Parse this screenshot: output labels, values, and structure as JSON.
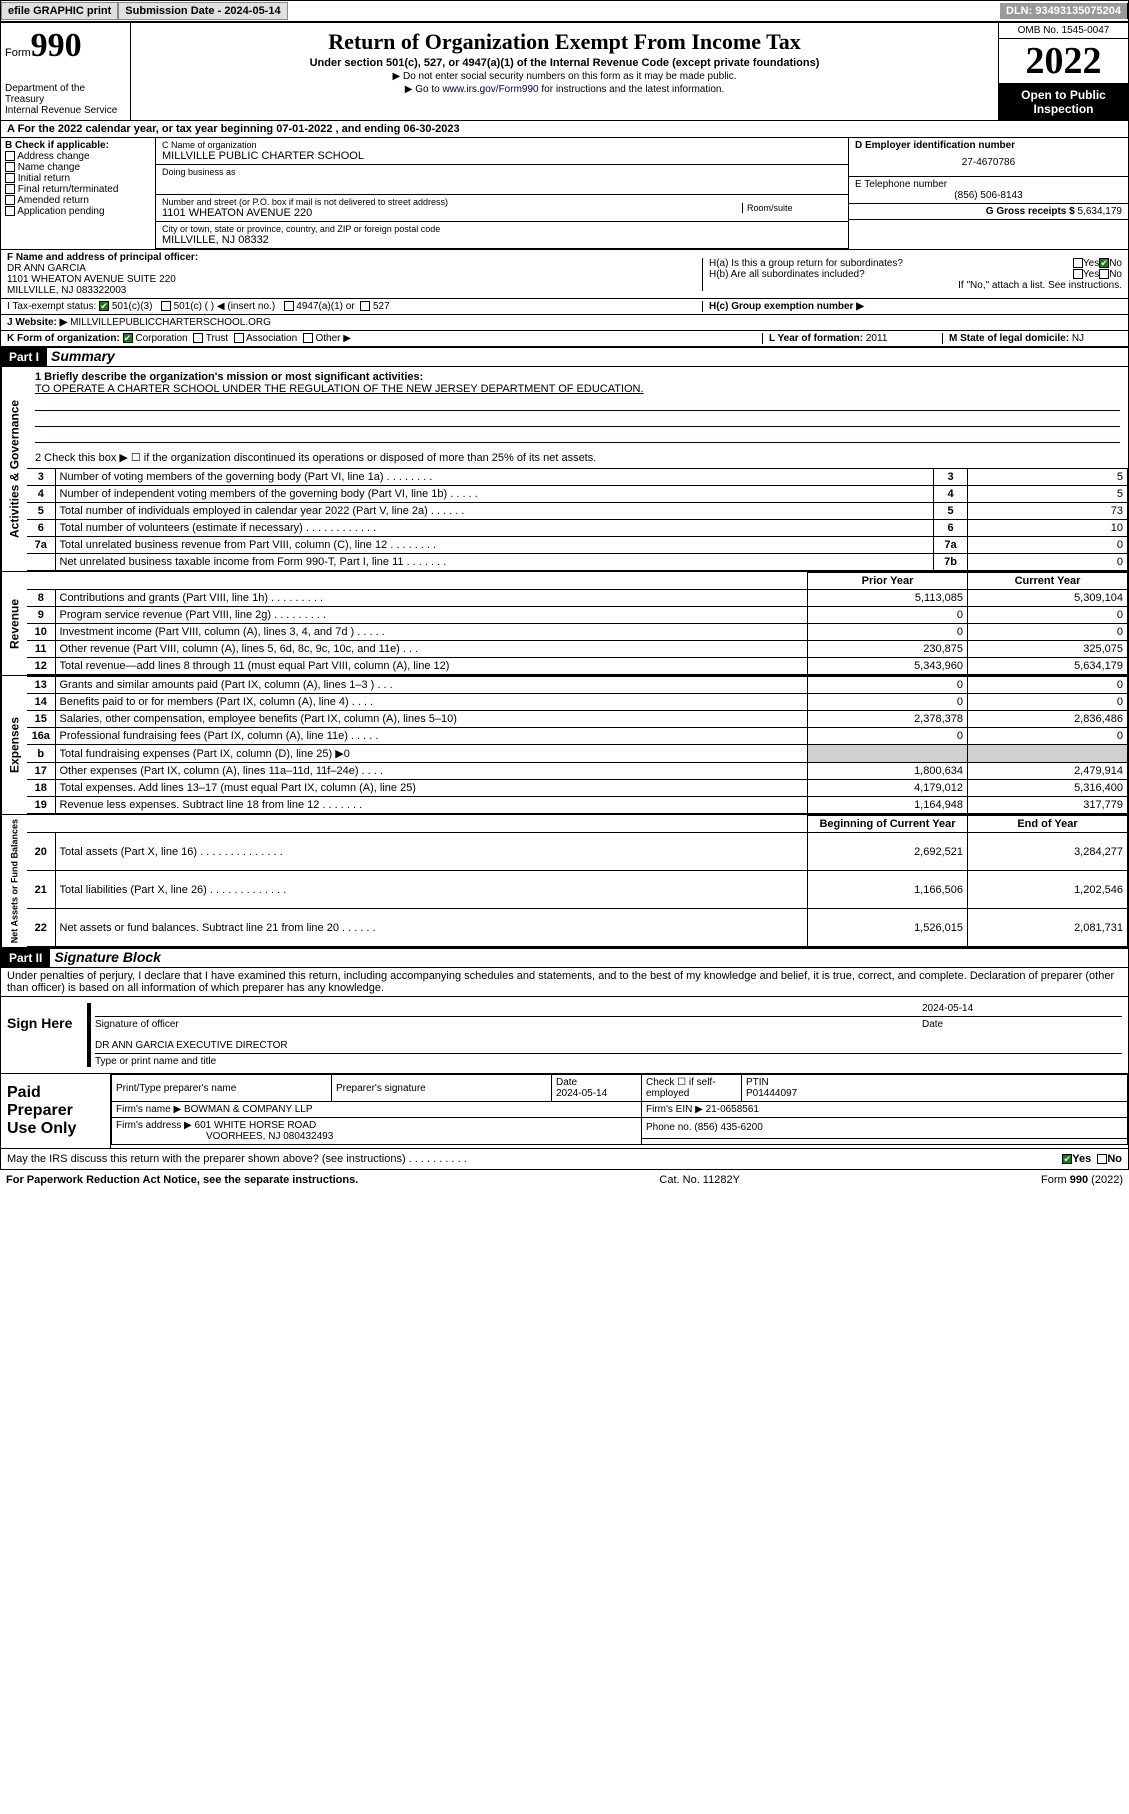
{
  "top": {
    "efile": "efile GRAPHIC print",
    "sub_label": "Submission Date - 2024-05-14",
    "dln": "DLN: 93493135075204"
  },
  "hdr": {
    "form_word": "Form",
    "form_num": "990",
    "dept": "Department of the Treasury\nInternal Revenue Service",
    "title": "Return of Organization Exempt From Income Tax",
    "sub": "Under section 501(c), 527, or 4947(a)(1) of the Internal Revenue Code (except private foundations)",
    "instr1": "▶ Do not enter social security numbers on this form as it may be made public.",
    "instr2_pre": "▶ Go to ",
    "instr2_link": "www.irs.gov/Form990",
    "instr2_post": " for instructions and the latest information.",
    "omb": "OMB No. 1545-0047",
    "year": "2022",
    "open": "Open to Public Inspection"
  },
  "a": {
    "text_pre": "A For the 2022 calendar year, or tax year beginning ",
    "begin": "07-01-2022",
    "mid": " , and ending ",
    "end": "06-30-2023"
  },
  "b": {
    "title": "B Check if applicable:",
    "items": [
      "Address change",
      "Name change",
      "Initial return",
      "Final return/terminated",
      "Amended return",
      "Application pending"
    ]
  },
  "c": {
    "name_lbl": "C Name of organization",
    "name": "MILLVILLE PUBLIC CHARTER SCHOOL",
    "dba_lbl": "Doing business as",
    "addr_lbl": "Number and street (or P.O. box if mail is not delivered to street address)",
    "room_lbl": "Room/suite",
    "addr": "1101 WHEATON AVENUE 220",
    "city_lbl": "City or town, state or province, country, and ZIP or foreign postal code",
    "city": "MILLVILLE, NJ  08332"
  },
  "d": {
    "lbl": "D Employer identification number",
    "val": "27-4670786"
  },
  "e": {
    "lbl": "E Telephone number",
    "val": "(856) 506-8143"
  },
  "g": {
    "lbl": "G Gross receipts $",
    "val": "5,634,179"
  },
  "f": {
    "lbl": "F Name and address of principal officer:",
    "l1": "DR ANN GARCIA",
    "l2": "1101 WHEATON AVENUE SUITE 220",
    "l3": "MILLVILLE, NJ  083322003"
  },
  "h": {
    "a": "H(a)  Is this a group return for subordinates?",
    "b": "H(b)  Are all subordinates included?",
    "bnote": "If \"No,\" attach a list. See instructions.",
    "c_lbl": "H(c)  Group exemption number ▶",
    "yes": "Yes",
    "no": "No"
  },
  "i": {
    "lbl": "I   Tax-exempt status:",
    "o1": "501(c)(3)",
    "o2": "501(c) (  ) ◀ (insert no.)",
    "o3": "4947(a)(1) or",
    "o4": "527"
  },
  "j": {
    "lbl": "J   Website: ▶",
    "val": "MILLVILLEPUBLICCHARTERSCHOOL.ORG"
  },
  "k": {
    "lbl": "K Form of organization:",
    "o1": "Corporation",
    "o2": "Trust",
    "o3": "Association",
    "o4": "Other ▶"
  },
  "l": {
    "lbl": "L Year of formation:",
    "val": "2011"
  },
  "m": {
    "lbl": "M State of legal domicile:",
    "val": "NJ"
  },
  "parts": {
    "p1": "Part I",
    "p1_title": "Summary",
    "p2": "Part II",
    "p2_title": "Signature Block"
  },
  "p1": {
    "q1": "1   Briefly describe the organization's mission or most significant activities:",
    "mission": "TO OPERATE A CHARTER SCHOOL UNDER THE REGULATION OF THE NEW JERSEY DEPARTMENT OF EDUCATION.",
    "q2": "2   Check this box ▶ ☐ if the organization discontinued its operations or disposed of more than 25% of its net assets.",
    "hdr_prior": "Prior Year",
    "hdr_curr": "Current Year",
    "hdr_begin": "Beginning of Current Year",
    "hdr_end": "End of Year",
    "sections": {
      "ag": "Activities & Governance",
      "rev": "Revenue",
      "exp": "Expenses",
      "na": "Net Assets or Fund Balances"
    },
    "gov": [
      {
        "n": "3",
        "t": "Number of voting members of the governing body (Part VI, line 1a)   .   .   .   .   .   .   .   .",
        "b": "3",
        "v": "5"
      },
      {
        "n": "4",
        "t": "Number of independent voting members of the governing body (Part VI, line 1b)   .   .   .   .   .",
        "b": "4",
        "v": "5"
      },
      {
        "n": "5",
        "t": "Total number of individuals employed in calendar year 2022 (Part V, line 2a)   .   .   .   .   .   .",
        "b": "5",
        "v": "73"
      },
      {
        "n": "6",
        "t": "Total number of volunteers (estimate if necessary)   .   .   .   .   .   .   .   .   .   .   .   .",
        "b": "6",
        "v": "10"
      },
      {
        "n": "7a",
        "t": "Total unrelated business revenue from Part VIII, column (C), line 12   .   .   .   .   .   .   .   .",
        "b": "7a",
        "v": "0"
      },
      {
        "n": "",
        "t": "Net unrelated business taxable income from Form 990-T, Part I, line 11   .   .   .   .   .   .   .",
        "b": "7b",
        "v": "0"
      }
    ],
    "rev": [
      {
        "n": "8",
        "t": "Contributions and grants (Part VIII, line 1h)   .   .   .   .   .   .   .   .   .",
        "p": "5,113,085",
        "c": "5,309,104"
      },
      {
        "n": "9",
        "t": "Program service revenue (Part VIII, line 2g)   .   .   .   .   .   .   .   .   .",
        "p": "0",
        "c": "0"
      },
      {
        "n": "10",
        "t": "Investment income (Part VIII, column (A), lines 3, 4, and 7d )   .   .   .   .   .",
        "p": "0",
        "c": "0"
      },
      {
        "n": "11",
        "t": "Other revenue (Part VIII, column (A), lines 5, 6d, 8c, 9c, 10c, and 11e)   .   .   .",
        "p": "230,875",
        "c": "325,075"
      },
      {
        "n": "12",
        "t": "Total revenue—add lines 8 through 11 (must equal Part VIII, column (A), line 12)",
        "p": "5,343,960",
        "c": "5,634,179"
      }
    ],
    "exp": [
      {
        "n": "13",
        "t": "Grants and similar amounts paid (Part IX, column (A), lines 1–3 )   .   .   .",
        "p": "0",
        "c": "0"
      },
      {
        "n": "14",
        "t": "Benefits paid to or for members (Part IX, column (A), line 4)   .   .   .   .",
        "p": "0",
        "c": "0"
      },
      {
        "n": "15",
        "t": "Salaries, other compensation, employee benefits (Part IX, column (A), lines 5–10)",
        "p": "2,378,378",
        "c": "2,836,486"
      },
      {
        "n": "16a",
        "t": "Professional fundraising fees (Part IX, column (A), line 11e)   .   .   .   .   .",
        "p": "0",
        "c": "0"
      },
      {
        "n": "b",
        "t": "Total fundraising expenses (Part IX, column (D), line 25) ▶0",
        "p": "",
        "c": "",
        "shade": true
      },
      {
        "n": "17",
        "t": "Other expenses (Part IX, column (A), lines 11a–11d, 11f–24e)   .   .   .   .",
        "p": "1,800,634",
        "c": "2,479,914"
      },
      {
        "n": "18",
        "t": "Total expenses. Add lines 13–17 (must equal Part IX, column (A), line 25)",
        "p": "4,179,012",
        "c": "5,316,400"
      },
      {
        "n": "19",
        "t": "Revenue less expenses. Subtract line 18 from line 12   .   .   .   .   .   .   .",
        "p": "1,164,948",
        "c": "317,779"
      }
    ],
    "na": [
      {
        "n": "20",
        "t": "Total assets (Part X, line 16)   .   .   .   .   .   .   .   .   .   .   .   .   .   .",
        "p": "2,692,521",
        "c": "3,284,277"
      },
      {
        "n": "21",
        "t": "Total liabilities (Part X, line 26)   .   .   .   .   .   .   .   .   .   .   .   .   .",
        "p": "1,166,506",
        "c": "1,202,546"
      },
      {
        "n": "22",
        "t": "Net assets or fund balances. Subtract line 21 from line 20   .   .   .   .   .   .",
        "p": "1,526,015",
        "c": "2,081,731"
      }
    ]
  },
  "p2": {
    "decl": "Under penalties of perjury, I declare that I have examined this return, including accompanying schedules and statements, and to the best of my knowledge and belief, it is true, correct, and complete. Declaration of preparer (other than officer) is based on all information of which preparer has any knowledge.",
    "sign_here": "Sign Here",
    "sig_officer": "Signature of officer",
    "date": "Date",
    "sig_date": "2024-05-14",
    "officer": "DR ANN GARCIA  EXECUTIVE DIRECTOR",
    "type_name": "Type or print name and title",
    "paid": "Paid Preparer Use Only",
    "prep_name_lbl": "Print/Type preparer's name",
    "prep_sig_lbl": "Preparer's signature",
    "prep_date_lbl": "Date",
    "prep_date": "2024-05-14",
    "self_emp": "Check ☐ if self-employed",
    "ptin_lbl": "PTIN",
    "ptin": "P01444097",
    "firm_name_lbl": "Firm's name   ▶",
    "firm_name": "BOWMAN & COMPANY LLP",
    "firm_ein_lbl": "Firm's EIN ▶",
    "firm_ein": "21-0658561",
    "firm_addr_lbl": "Firm's address ▶",
    "firm_addr1": "601 WHITE HORSE ROAD",
    "firm_addr2": "VOORHEES, NJ  080432493",
    "firm_phone_lbl": "Phone no.",
    "firm_phone": "(856) 435-6200",
    "discuss": "May the IRS discuss this return with the preparer shown above? (see instructions)   .   .   .   .   .   .   .   .   .   .",
    "yes": "Yes",
    "no": "No"
  },
  "footer": {
    "l": "For Paperwork Reduction Act Notice, see the separate instructions.",
    "m": "Cat. No. 11282Y",
    "r": "Form 990 (2022)"
  }
}
